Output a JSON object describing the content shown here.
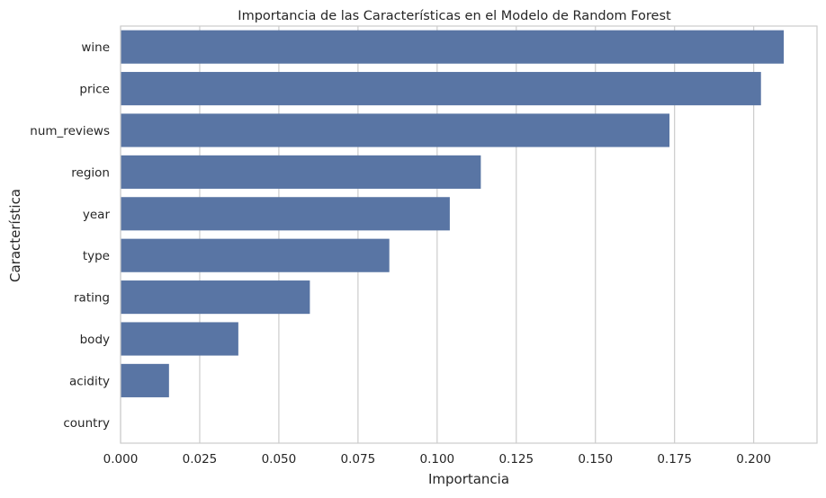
{
  "chart_data": {
    "type": "bar",
    "orientation": "horizontal",
    "title": "Importancia de las Características en el Modelo de Random Forest",
    "xlabel": "Importancia",
    "ylabel": "Característica",
    "categories": [
      "wine",
      "price",
      "num_reviews",
      "region",
      "year",
      "type",
      "rating",
      "body",
      "acidity",
      "country"
    ],
    "values": [
      0.2095,
      0.2023,
      0.1734,
      0.1138,
      0.104,
      0.0849,
      0.0598,
      0.0372,
      0.0153,
      0.0
    ],
    "xlim": [
      0.0,
      0.22
    ],
    "xticks": [
      0.0,
      0.025,
      0.05,
      0.075,
      0.1,
      0.125,
      0.15,
      0.175,
      0.2
    ],
    "xtick_labels": [
      "0.000",
      "0.025",
      "0.050",
      "0.075",
      "0.100",
      "0.125",
      "0.150",
      "0.175",
      "0.200"
    ],
    "grid": "vertical",
    "bar_color": "#5975a4",
    "grid_color": "#cccccc",
    "frame_color": "#cccccc"
  }
}
